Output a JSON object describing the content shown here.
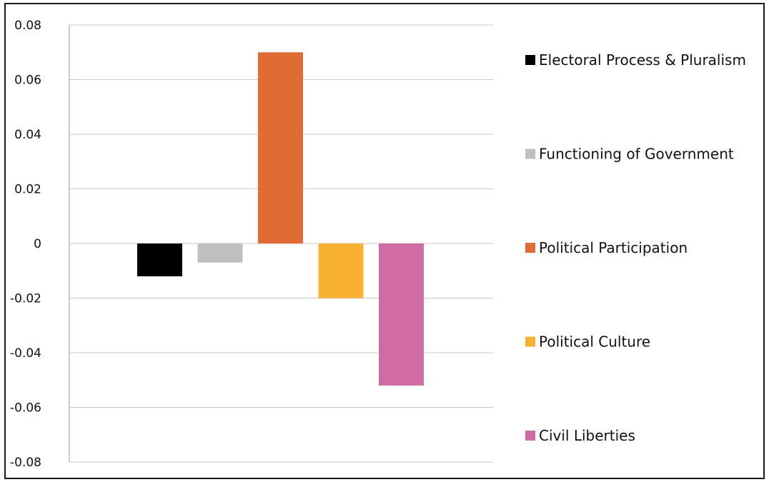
{
  "chart_data": {
    "type": "bar",
    "title": "",
    "xlabel": "",
    "ylabel": "",
    "ylim": [
      -0.08,
      0.08
    ],
    "y_ticks": [
      0.08,
      0.06,
      0.04,
      0.02,
      0,
      -0.02,
      -0.04,
      -0.06,
      -0.08
    ],
    "y_tick_labels": [
      "0.08",
      "0.06",
      "0.04",
      "0.02",
      "0",
      "-0.02",
      "-0.04",
      "-0.06",
      "-0.08"
    ],
    "grid": true,
    "legend_position": "right",
    "series": [
      {
        "name": "Electoral Process & Pluralism",
        "value": -0.012,
        "color": "#000000"
      },
      {
        "name": "Functioning of Government",
        "value": -0.007,
        "color": "#c0c0c0"
      },
      {
        "name": "Political Participation",
        "value": 0.07,
        "color": "#e06b35"
      },
      {
        "name": "Political Culture",
        "value": -0.02,
        "color": "#f8b133"
      },
      {
        "name": "Civil Liberties",
        "value": -0.052,
        "color": "#d06ba3"
      }
    ]
  }
}
